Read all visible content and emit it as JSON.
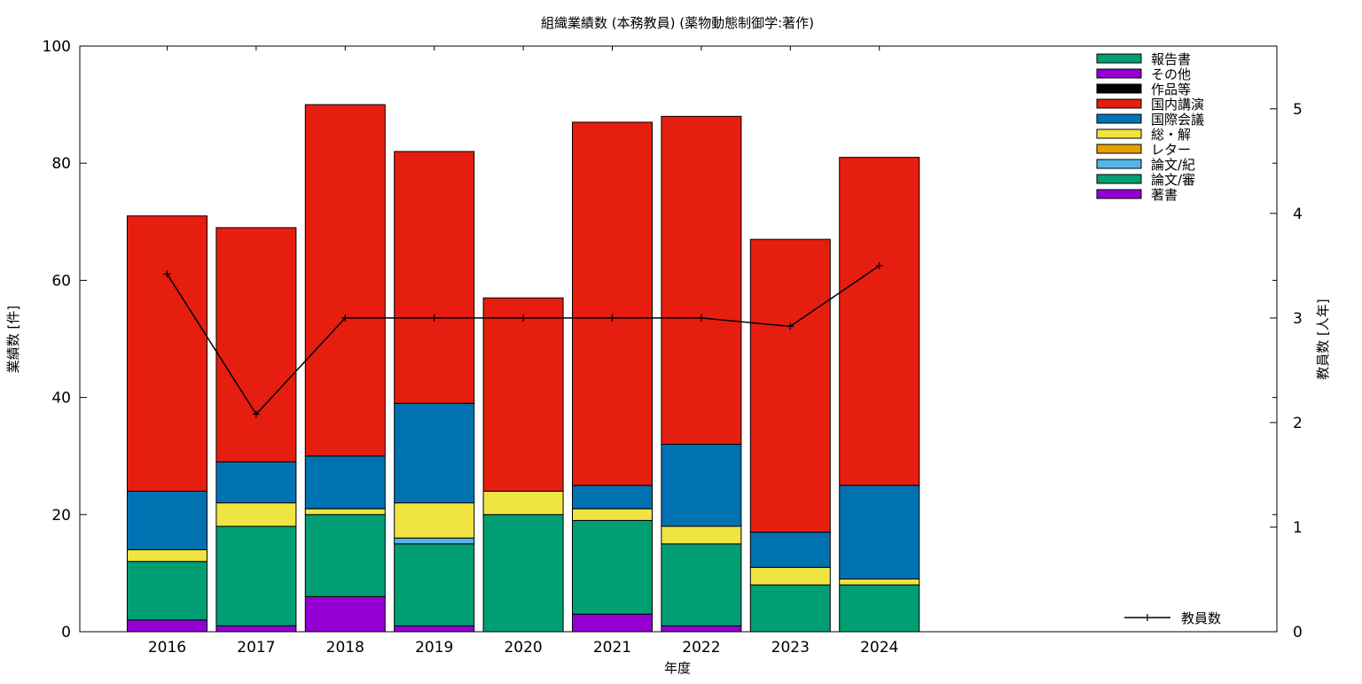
{
  "chart_data": {
    "type": "bar",
    "title": "組織業績数 (本務教員) (薬物動態制御学:著作)",
    "xlabel": "年度",
    "ylabel": "業績数 [件]",
    "y2label": "教員数 [人年]",
    "ylim": [
      0,
      100
    ],
    "y2lim": [
      0,
      5.6
    ],
    "yticks": [
      0,
      20,
      40,
      60,
      80,
      100
    ],
    "y2ticks": [
      0,
      1,
      2,
      3,
      4,
      5
    ],
    "stacked": true,
    "legend_position": "top-right",
    "categories": [
      "2016",
      "2017",
      "2018",
      "2019",
      "2020",
      "2021",
      "2022",
      "2023",
      "2024"
    ],
    "series": [
      {
        "name": "著書",
        "color": "#9400d3",
        "values": [
          2,
          1,
          6,
          1,
          0,
          3,
          1,
          0,
          0
        ]
      },
      {
        "name": "論文/審",
        "color": "#009e73",
        "values": [
          10,
          17,
          14,
          14,
          20,
          16,
          14,
          8,
          8
        ]
      },
      {
        "name": "論文/紀",
        "color": "#56b4e9",
        "values": [
          0,
          0,
          0,
          1,
          0,
          0,
          0,
          0,
          0
        ]
      },
      {
        "name": "レター",
        "color": "#e69f00",
        "values": [
          0,
          0,
          0,
          0,
          0,
          0,
          0,
          0,
          0
        ]
      },
      {
        "name": "総・解",
        "color": "#f0e442",
        "values": [
          2,
          4,
          1,
          6,
          4,
          2,
          3,
          3,
          1
        ]
      },
      {
        "name": "国際会議",
        "color": "#0072b2",
        "values": [
          10,
          7,
          9,
          17,
          0,
          4,
          14,
          6,
          16
        ]
      },
      {
        "name": "国内講演",
        "color": "#e51e10",
        "values": [
          47,
          40,
          60,
          43,
          33,
          62,
          56,
          50,
          56
        ]
      },
      {
        "name": "作品等",
        "color": "#000000",
        "values": [
          0,
          0,
          0,
          0,
          0,
          0,
          0,
          0,
          0
        ]
      },
      {
        "name": "その他",
        "color": "#9400d3",
        "values": [
          0,
          0,
          0,
          0,
          0,
          0,
          0,
          0,
          0
        ]
      },
      {
        "name": "報告書",
        "color": "#009e73",
        "values": [
          0,
          0,
          0,
          0,
          0,
          0,
          0,
          0,
          0
        ]
      }
    ],
    "line_series": {
      "name": "教員数",
      "axis": "y2",
      "color": "#000000",
      "values": [
        3.42,
        2.08,
        3.0,
        3.0,
        3.0,
        3.0,
        3.0,
        2.92,
        3.5
      ]
    }
  }
}
